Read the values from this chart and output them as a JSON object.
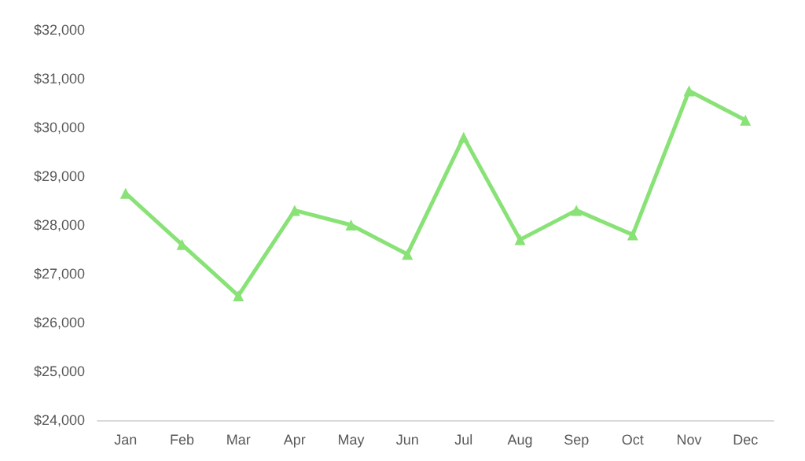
{
  "chart_data": {
    "type": "line",
    "categories": [
      "Jan",
      "Feb",
      "Mar",
      "Apr",
      "May",
      "Jun",
      "Jul",
      "Aug",
      "Sep",
      "Oct",
      "Nov",
      "Dec"
    ],
    "series": [
      {
        "color": "#88e276",
        "values": [
          28650,
          27600,
          26550,
          28300,
          28000,
          27400,
          29800,
          27700,
          28300,
          27800,
          30750,
          30150
        ]
      }
    ],
    "ylim": [
      24000,
      32000
    ],
    "yticks": [
      {
        "value": 24000,
        "label": "$24,000"
      },
      {
        "value": 25000,
        "label": "$25,000"
      },
      {
        "value": 26000,
        "label": "$26,000"
      },
      {
        "value": 27000,
        "label": "$27,000"
      },
      {
        "value": 28000,
        "label": "$28,000"
      },
      {
        "value": 29000,
        "label": "$29,000"
      },
      {
        "value": 30000,
        "label": "$30,000"
      },
      {
        "value": 31000,
        "label": "$31,000"
      },
      {
        "value": 32000,
        "label": "$32,000"
      }
    ],
    "grid": false,
    "marker": "triangle",
    "line_style": "solid"
  }
}
